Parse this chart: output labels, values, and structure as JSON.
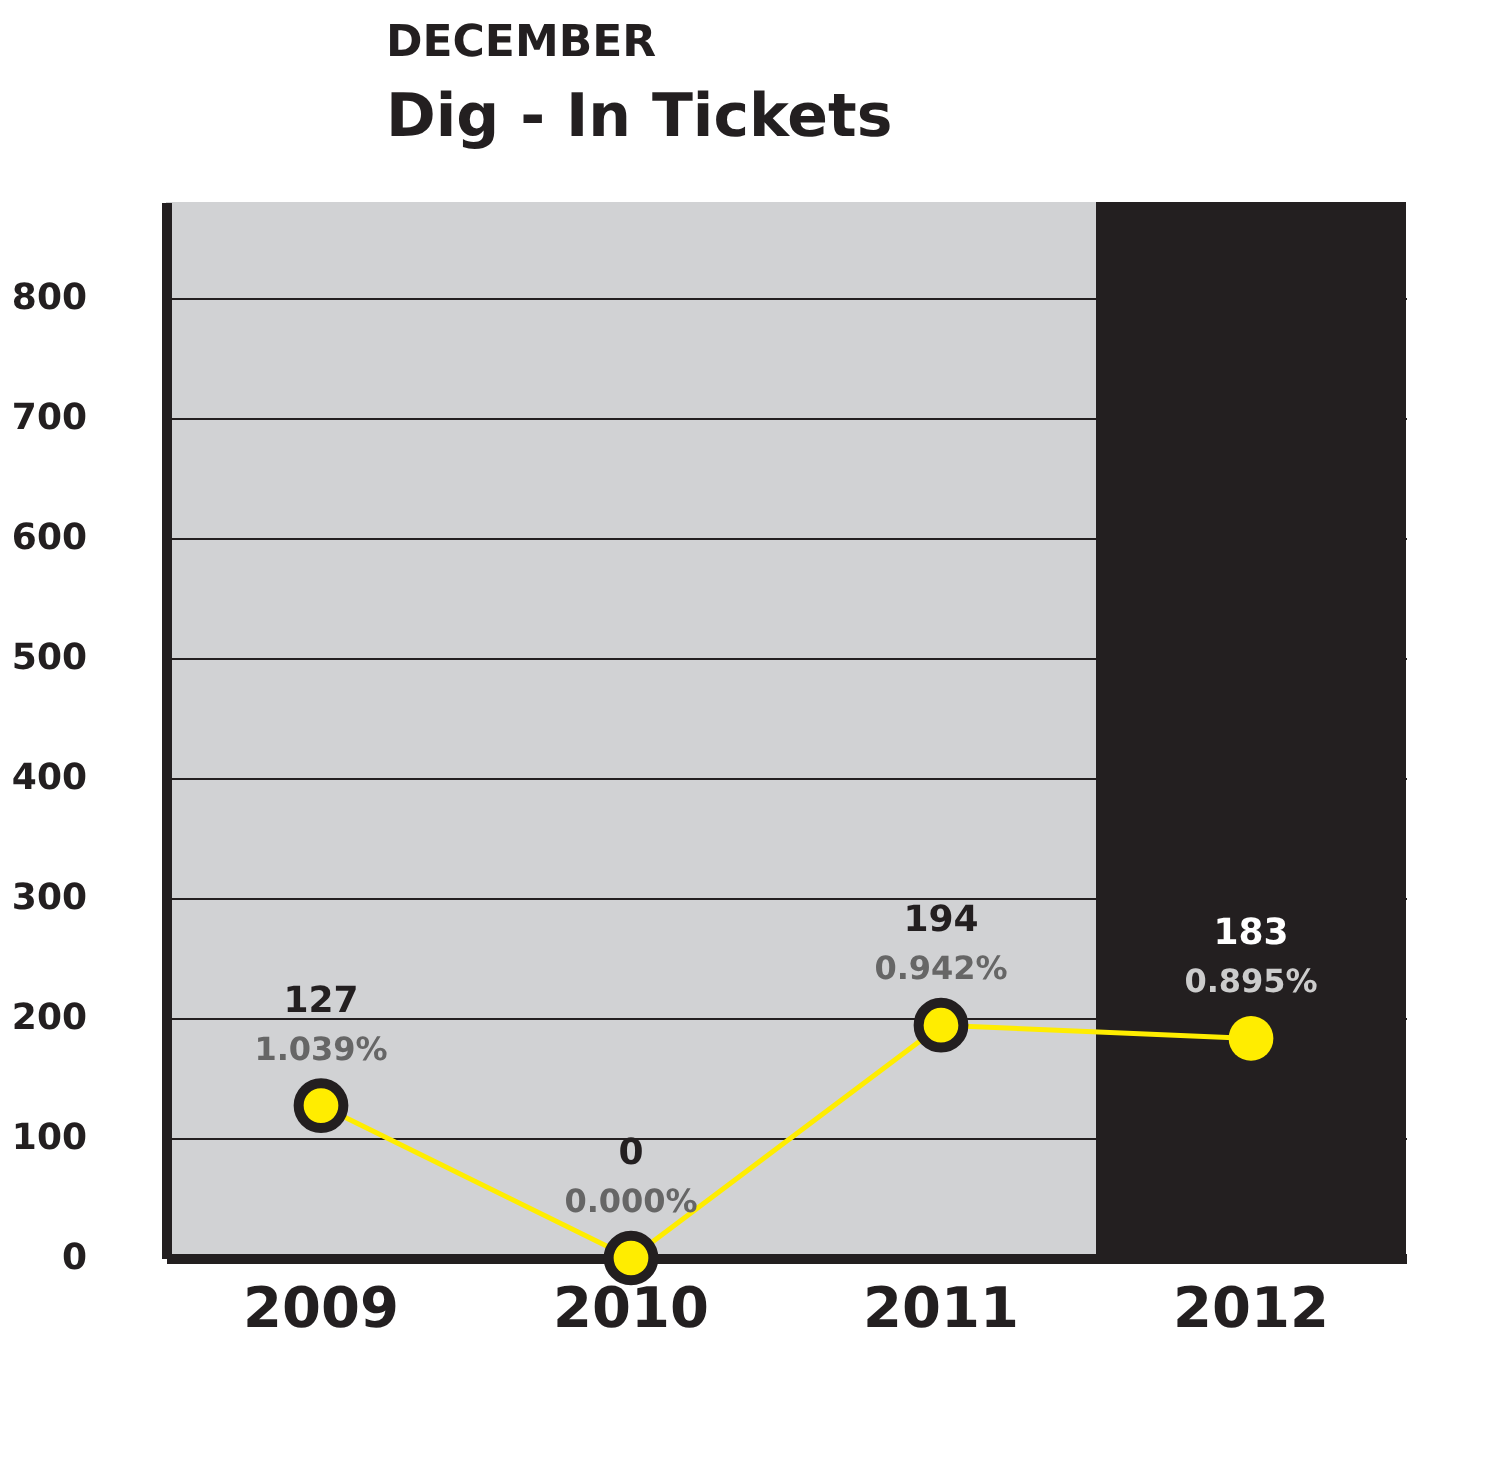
{
  "chart_data": {
    "type": "line",
    "title": "Dig - In Tickets",
    "subtitle": "DECEMBER",
    "categories": [
      "2009",
      "2010",
      "2011",
      "2012"
    ],
    "series": [
      {
        "color": "#ffed00",
        "values": [
          127,
          0,
          194,
          183
        ]
      }
    ],
    "data_labels": true,
    "annotations": [
      {
        "text": "1.039%",
        "x": "2009",
        "y": 127
      },
      {
        "text": "0.000%",
        "x": "2010",
        "y": 0
      },
      {
        "text": "0.942%",
        "x": "2011",
        "y": 194
      },
      {
        "text": "0.895%",
        "x": "2012",
        "y": 183
      }
    ],
    "bands": [
      {
        "axis": "x",
        "from": "2012",
        "to": "2012",
        "color": "#231f20"
      }
    ],
    "ylim": [
      0,
      880
    ],
    "yticks": [
      0,
      100,
      200,
      300,
      400,
      500,
      600,
      700,
      800
    ],
    "grid": "y",
    "marker": "circle",
    "line_style": "solid"
  }
}
